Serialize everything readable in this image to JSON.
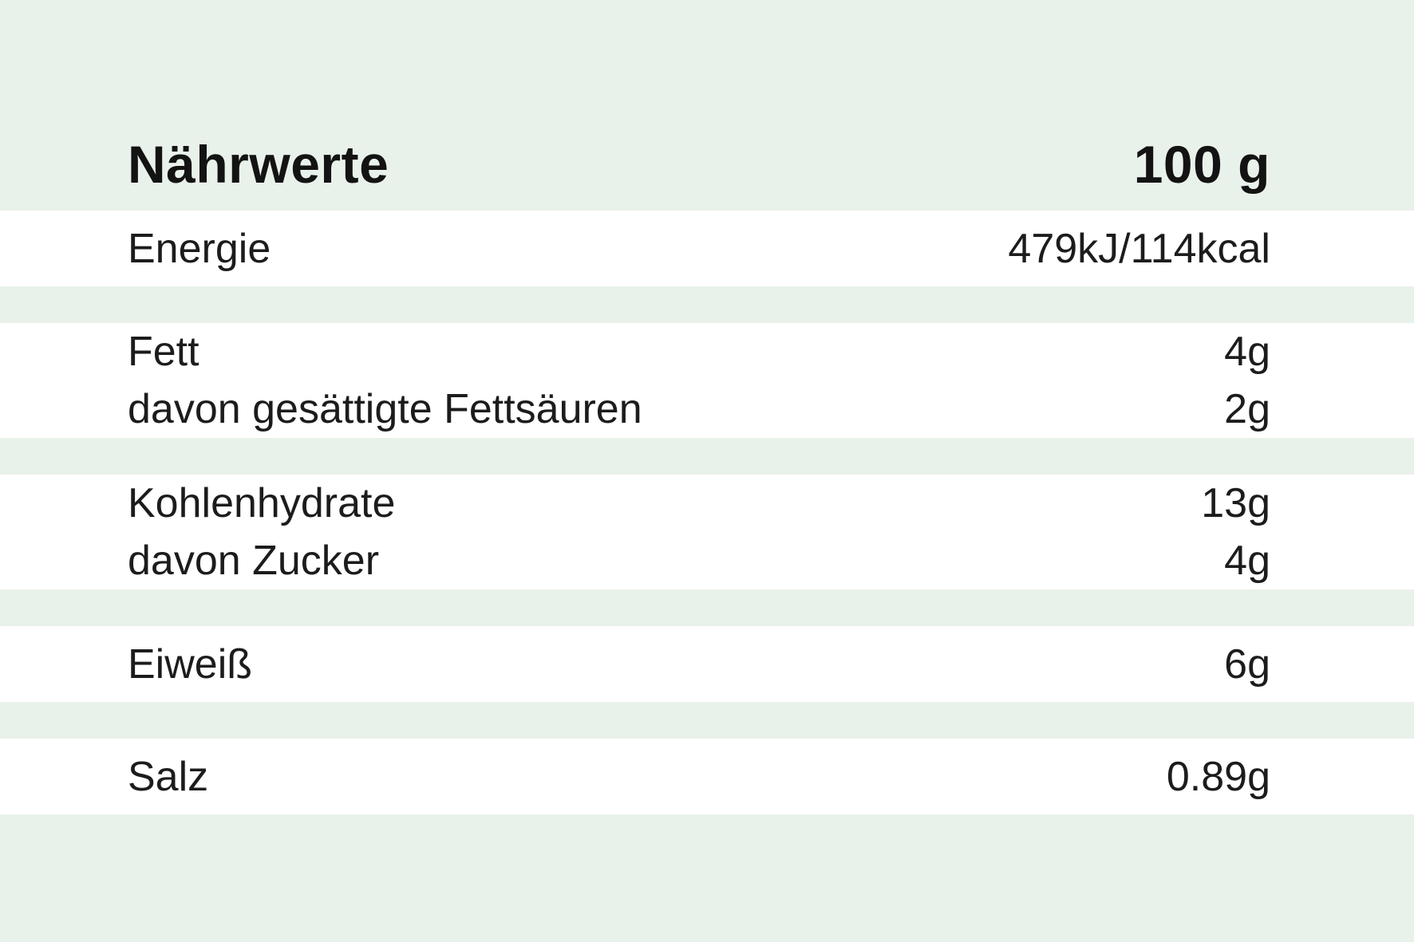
{
  "colors": {
    "background": "#e9f2ea",
    "row_background": "#ffffff",
    "text": "#1c1c1c"
  },
  "table": {
    "title": "Nährwerte",
    "amount_header": "100 g",
    "rows": [
      {
        "id": "energie",
        "lines": [
          {
            "label": "Energie",
            "value": "479kJ/114kcal"
          }
        ]
      },
      {
        "id": "fett",
        "lines": [
          {
            "label": "Fett",
            "value": "4g"
          },
          {
            "label": "davon gesättigte Fettsäuren",
            "value": "2g"
          }
        ]
      },
      {
        "id": "kohlenhydrate",
        "lines": [
          {
            "label": "Kohlenhydrate",
            "value": "13g"
          },
          {
            "label": "davon Zucker",
            "value": "4g"
          }
        ]
      },
      {
        "id": "eiweiss",
        "lines": [
          {
            "label": "Eiweiß",
            "value": "6g"
          }
        ]
      },
      {
        "id": "salz",
        "lines": [
          {
            "label": "Salz",
            "value": "0.89g"
          }
        ]
      }
    ]
  }
}
